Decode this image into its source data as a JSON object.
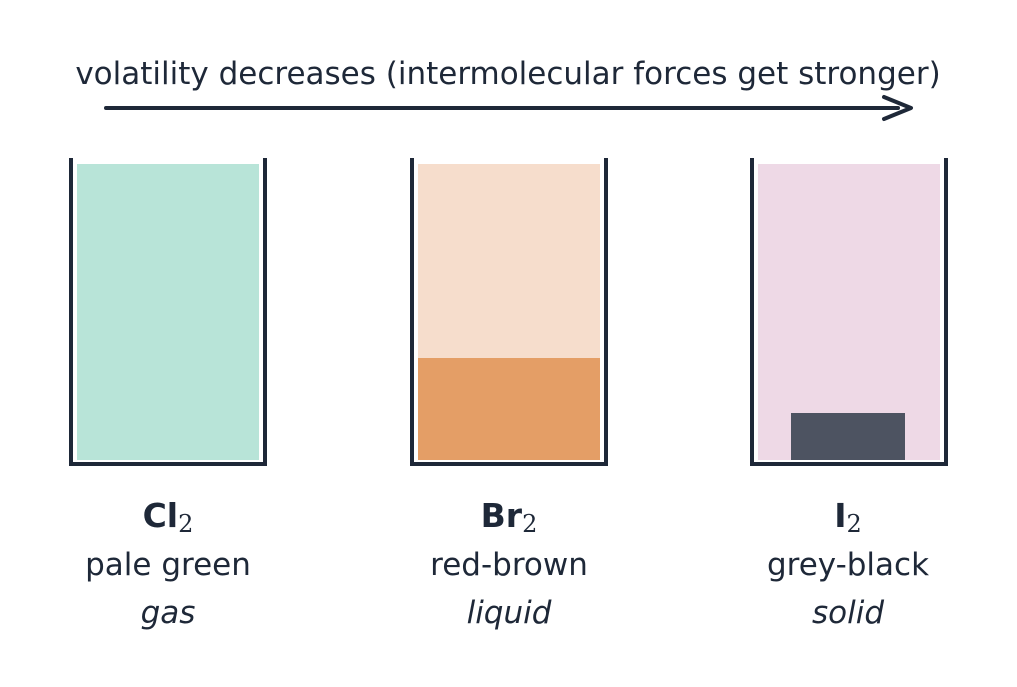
{
  "title": "volatility decreases (intermolecular forces get stronger)",
  "colors": {
    "ink": "#1e2838",
    "chlorine_gas": "#b8e4d8",
    "bromine_vapour": "#f6ddcc",
    "bromine_liquid": "#e49e66",
    "iodine_vapour": "#eed9e6",
    "iodine_solid": "#4d5361"
  },
  "halogens": [
    {
      "formula_symbol": "Cl",
      "formula_subscript": "2",
      "colour": "pale green",
      "state": "gas"
    },
    {
      "formula_symbol": "Br",
      "formula_subscript": "2",
      "colour": "red-brown",
      "state": "liquid"
    },
    {
      "formula_symbol": "I",
      "formula_subscript": "2",
      "colour": "grey-black",
      "state": "solid"
    }
  ]
}
